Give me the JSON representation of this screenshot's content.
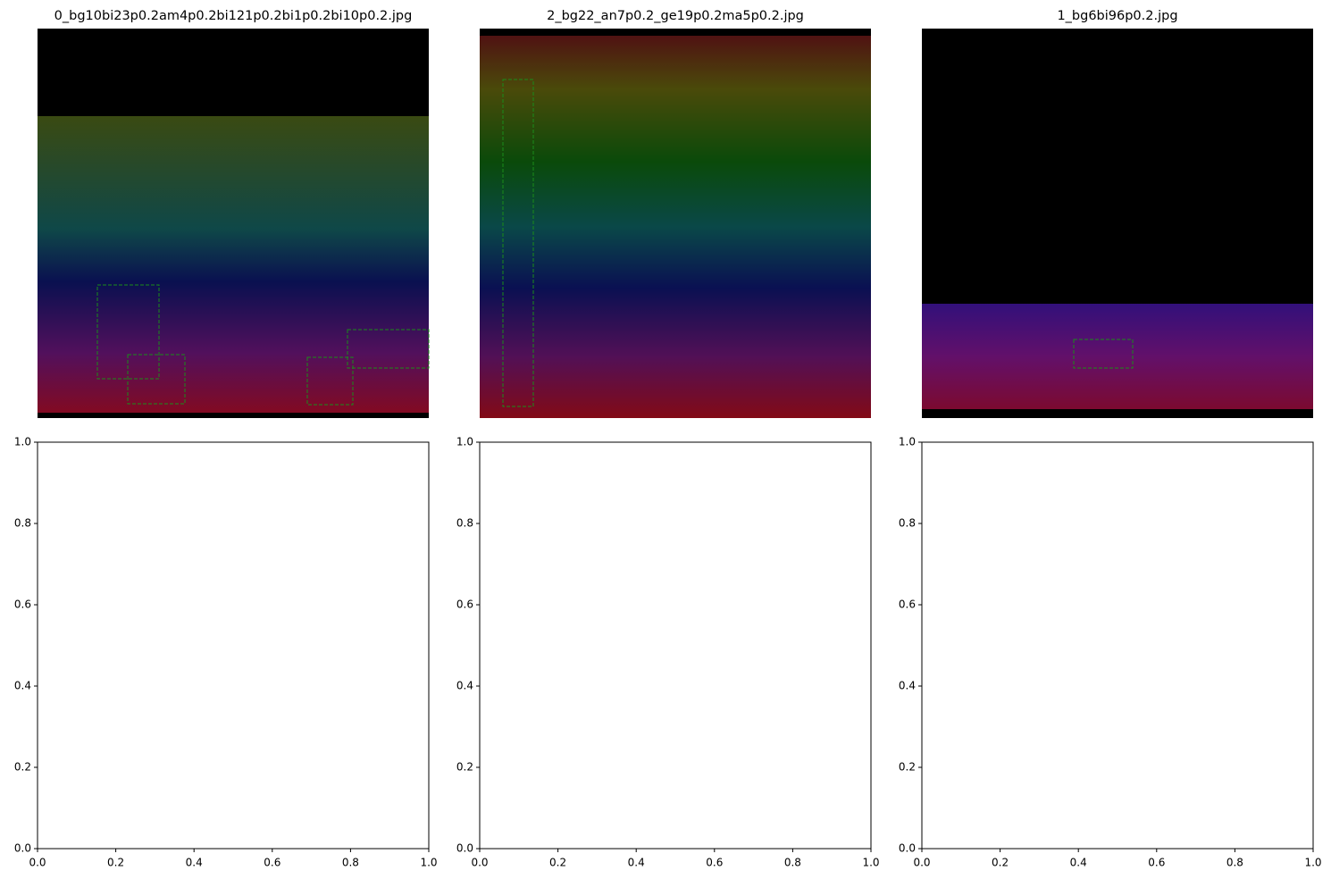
{
  "chart_data": [
    {
      "type": "image",
      "title": "0_bg10bi23p0.2am4p0.2bi121p0.2bi1p0.2bi10p0.2.jpg"
    },
    {
      "type": "image",
      "title": "2_bg22_an7p0.2_ge19p0.2ma5p0.2.jpg"
    },
    {
      "type": "image",
      "title": "1_bg6bi96p0.2.jpg"
    },
    {
      "type": "line",
      "xlim": [
        0,
        1
      ],
      "ylim": [
        0,
        1
      ],
      "xticks": [
        {
          "value": 0,
          "label": "0.0"
        },
        {
          "value": 0.2,
          "label": "0.2"
        },
        {
          "value": 0.4,
          "label": "0.4"
        },
        {
          "value": 0.6,
          "label": "0.6"
        },
        {
          "value": 0.8,
          "label": "0.8"
        },
        {
          "value": 1,
          "label": "1.0"
        }
      ],
      "yticks": [
        {
          "value": 0,
          "label": "0.0"
        },
        {
          "value": 0.2,
          "label": "0.2"
        },
        {
          "value": 0.4,
          "label": "0.4"
        },
        {
          "value": 0.6,
          "label": "0.6"
        },
        {
          "value": 0.8,
          "label": "0.8"
        },
        {
          "value": 1,
          "label": "1.0"
        }
      ]
    },
    {
      "type": "line",
      "xlim": [
        0,
        1
      ],
      "ylim": [
        0,
        1
      ],
      "xticks": [
        {
          "value": 0,
          "label": "0.0"
        },
        {
          "value": 0.2,
          "label": "0.2"
        },
        {
          "value": 0.4,
          "label": "0.4"
        },
        {
          "value": 0.6,
          "label": "0.6"
        },
        {
          "value": 0.8,
          "label": "0.8"
        },
        {
          "value": 1,
          "label": "1.0"
        }
      ],
      "yticks": [
        {
          "value": 0,
          "label": "0.0"
        },
        {
          "value": 0.2,
          "label": "0.2"
        },
        {
          "value": 0.4,
          "label": "0.4"
        },
        {
          "value": 0.6,
          "label": "0.6"
        },
        {
          "value": 0.8,
          "label": "0.8"
        },
        {
          "value": 1,
          "label": "1.0"
        }
      ]
    },
    {
      "type": "line",
      "xlim": [
        0,
        1
      ],
      "ylim": [
        0,
        1
      ],
      "xticks": [
        {
          "value": 0,
          "label": "0.0"
        },
        {
          "value": 0.2,
          "label": "0.2"
        },
        {
          "value": 0.4,
          "label": "0.4"
        },
        {
          "value": 0.6,
          "label": "0.6"
        },
        {
          "value": 0.8,
          "label": "0.8"
        },
        {
          "value": 1,
          "label": "1.0"
        }
      ],
      "yticks": [
        {
          "value": 0,
          "label": "0.0"
        },
        {
          "value": 0.2,
          "label": "0.2"
        },
        {
          "value": 0.4,
          "label": "0.4"
        },
        {
          "value": 0.6,
          "label": "0.6"
        },
        {
          "value": 0.8,
          "label": "0.8"
        },
        {
          "value": 1,
          "label": "1.0"
        }
      ]
    }
  ]
}
